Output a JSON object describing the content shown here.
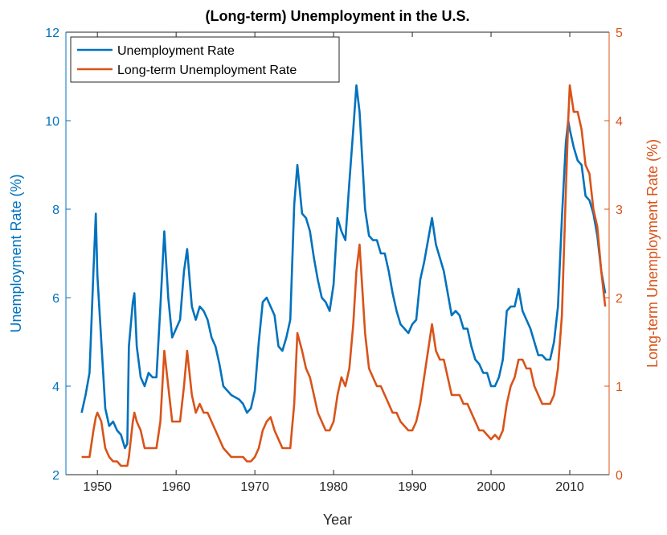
{
  "chart_data": {
    "type": "line",
    "title": "(Long-term) Unemployment in the U.S.",
    "xlabel": "Year",
    "ylabel": "Unemployment Rate (%)",
    "y2label": "Long-term Unemployment Rate (%)",
    "xlim": [
      1946,
      2015
    ],
    "xticks": [
      1950,
      1960,
      1970,
      1980,
      1990,
      2000,
      2010
    ],
    "ylim": [
      2,
      12
    ],
    "yticks": [
      2,
      4,
      6,
      8,
      10,
      12
    ],
    "y2lim": [
      0,
      5
    ],
    "y2ticks": [
      0,
      1,
      2,
      3,
      4,
      5
    ],
    "legend": "northwest",
    "x": [
      1948.0,
      1948.5,
      1949.0,
      1949.5,
      1949.8,
      1950.0,
      1950.5,
      1951.0,
      1951.5,
      1952.0,
      1952.5,
      1953.0,
      1953.5,
      1953.8,
      1954.0,
      1954.5,
      1954.7,
      1955.0,
      1955.5,
      1956.0,
      1956.5,
      1957.0,
      1957.5,
      1958.0,
      1958.5,
      1959.0,
      1959.5,
      1960.0,
      1960.5,
      1961.0,
      1961.4,
      1962.0,
      1962.5,
      1963.0,
      1963.5,
      1964.0,
      1964.5,
      1965.0,
      1965.5,
      1966.0,
      1967.0,
      1968.0,
      1968.5,
      1969.0,
      1969.5,
      1970.0,
      1970.5,
      1971.0,
      1971.5,
      1972.0,
      1972.5,
      1973.0,
      1973.5,
      1974.0,
      1974.5,
      1975.0,
      1975.4,
      1976.0,
      1976.5,
      1977.0,
      1977.5,
      1978.0,
      1978.5,
      1979.0,
      1979.5,
      1980.0,
      1980.5,
      1981.0,
      1981.5,
      1982.0,
      1982.5,
      1982.9,
      1983.3,
      1984.0,
      1984.5,
      1985.0,
      1985.5,
      1986.0,
      1986.5,
      1987.0,
      1987.5,
      1988.0,
      1988.5,
      1989.0,
      1989.5,
      1990.0,
      1990.5,
      1991.0,
      1991.5,
      1992.0,
      1992.5,
      1993.0,
      1993.5,
      1994.0,
      1994.5,
      1995.0,
      1995.5,
      1996.0,
      1996.5,
      1997.0,
      1997.5,
      1998.0,
      1998.5,
      1999.0,
      1999.5,
      2000.0,
      2000.5,
      2001.0,
      2001.5,
      2002.0,
      2002.5,
      2003.0,
      2003.5,
      2004.0,
      2004.5,
      2005.0,
      2005.5,
      2006.0,
      2006.5,
      2007.0,
      2007.5,
      2008.0,
      2008.5,
      2009.0,
      2009.5,
      2009.8,
      2010.0,
      2010.5,
      2011.0,
      2011.5,
      2012.0,
      2012.5,
      2013.0,
      2013.5,
      2014.0,
      2014.5
    ],
    "series": [
      {
        "name": "Unemployment Rate",
        "color": "#0072bd",
        "axis": "y",
        "values": [
          3.4,
          3.8,
          4.3,
          6.6,
          7.9,
          6.5,
          5.0,
          3.5,
          3.1,
          3.2,
          3.0,
          2.9,
          2.6,
          2.7,
          4.9,
          5.9,
          6.1,
          4.9,
          4.2,
          4.0,
          4.3,
          4.2,
          4.2,
          5.8,
          7.5,
          6.0,
          5.1,
          5.3,
          5.5,
          6.6,
          7.1,
          5.8,
          5.5,
          5.8,
          5.7,
          5.5,
          5.1,
          4.9,
          4.5,
          4.0,
          3.8,
          3.7,
          3.6,
          3.4,
          3.5,
          3.9,
          5.0,
          5.9,
          6.0,
          5.8,
          5.6,
          4.9,
          4.8,
          5.1,
          5.5,
          8.1,
          9.0,
          7.9,
          7.8,
          7.5,
          6.9,
          6.4,
          6.0,
          5.9,
          5.7,
          6.3,
          7.8,
          7.5,
          7.3,
          8.6,
          9.8,
          10.8,
          10.2,
          8.0,
          7.4,
          7.3,
          7.3,
          7.0,
          7.0,
          6.6,
          6.1,
          5.7,
          5.4,
          5.3,
          5.2,
          5.4,
          5.5,
          6.4,
          6.8,
          7.3,
          7.8,
          7.2,
          6.9,
          6.6,
          6.1,
          5.6,
          5.7,
          5.6,
          5.3,
          5.3,
          4.9,
          4.6,
          4.5,
          4.3,
          4.3,
          4.0,
          4.0,
          4.2,
          4.6,
          5.7,
          5.8,
          5.8,
          6.2,
          5.7,
          5.5,
          5.3,
          5.0,
          4.7,
          4.7,
          4.6,
          4.6,
          5.0,
          5.8,
          7.8,
          9.5,
          10.0,
          9.8,
          9.4,
          9.1,
          9.0,
          8.3,
          8.2,
          7.9,
          7.4,
          6.6,
          6.1
        ]
      },
      {
        "name": "Long-term Unemployment Rate",
        "color": "#d95319",
        "axis": "y2",
        "values": [
          0.2,
          0.2,
          0.2,
          0.5,
          0.65,
          0.7,
          0.6,
          0.3,
          0.2,
          0.15,
          0.15,
          0.1,
          0.1,
          0.1,
          0.2,
          0.6,
          0.7,
          0.6,
          0.5,
          0.3,
          0.3,
          0.3,
          0.3,
          0.6,
          1.4,
          1.0,
          0.6,
          0.6,
          0.6,
          1.0,
          1.4,
          0.9,
          0.7,
          0.8,
          0.7,
          0.7,
          0.6,
          0.5,
          0.4,
          0.3,
          0.2,
          0.2,
          0.2,
          0.15,
          0.15,
          0.2,
          0.3,
          0.5,
          0.6,
          0.65,
          0.5,
          0.4,
          0.3,
          0.3,
          0.3,
          0.8,
          1.6,
          1.4,
          1.2,
          1.1,
          0.9,
          0.7,
          0.6,
          0.5,
          0.5,
          0.6,
          0.9,
          1.1,
          1.0,
          1.2,
          1.7,
          2.3,
          2.6,
          1.6,
          1.2,
          1.1,
          1.0,
          1.0,
          0.9,
          0.8,
          0.7,
          0.7,
          0.6,
          0.55,
          0.5,
          0.5,
          0.6,
          0.8,
          1.1,
          1.4,
          1.7,
          1.4,
          1.3,
          1.3,
          1.1,
          0.9,
          0.9,
          0.9,
          0.8,
          0.8,
          0.7,
          0.6,
          0.5,
          0.5,
          0.45,
          0.4,
          0.45,
          0.4,
          0.5,
          0.8,
          1.0,
          1.1,
          1.3,
          1.3,
          1.2,
          1.2,
          1.0,
          0.9,
          0.8,
          0.8,
          0.8,
          0.9,
          1.2,
          1.8,
          3.2,
          4.0,
          4.4,
          4.1,
          4.1,
          3.9,
          3.5,
          3.4,
          3.0,
          2.8,
          2.3,
          1.9
        ]
      }
    ]
  }
}
